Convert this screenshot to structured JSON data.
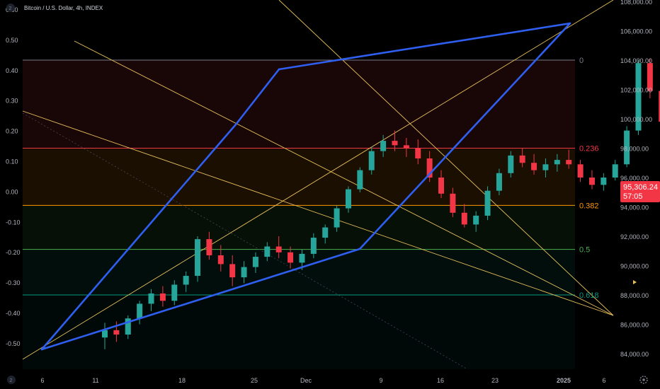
{
  "header": {
    "symbol_info": "Bitcoin / U.S. Dollar, 4h, INDEX"
  },
  "corner_badges": {
    "top_left": "2",
    "bottom_left": "2"
  },
  "price_tag": {
    "price": "95,306.24",
    "countdown": "57:05",
    "color": "#f23645"
  },
  "colors": {
    "background": "#000000",
    "up_candle": "#26a69a",
    "down_candle": "#f23645",
    "channel": "#2f5ff0",
    "fan_lines": "#e8c15a",
    "axis_text": "#b2b5be"
  },
  "chart_data": {
    "type": "candlestick",
    "title": "Bitcoin / U.S. Dollar, 4h, INDEX",
    "left_axis": {
      "ticks": [
        "0.60",
        "0.50",
        "0.40",
        "0.30",
        "0.20",
        "0.10",
        "0.00",
        "-0.10",
        "-0.20",
        "-0.30",
        "-0.40",
        "-0.50"
      ],
      "range": [
        -0.6,
        0.6
      ]
    },
    "right_axis": {
      "ticks": [
        "106,000.00",
        "104,000.00",
        "102,000.00",
        "100,000.00",
        "98,000.00",
        "96,000.00",
        "94,000.00",
        "92,000.00",
        "90,000.00",
        "88,000.00",
        "86,000.00",
        "84,000.00"
      ],
      "range": [
        82500,
        108000
      ],
      "top_tick": "108,000.00"
    },
    "x_axis": {
      "ticks": [
        "6",
        "11",
        "18",
        "25",
        "Dec",
        "2",
        "9",
        "16",
        "23",
        "2025",
        "6"
      ],
      "range": [
        "2024-11-06",
        "2025-01-06"
      ]
    },
    "fib_levels": [
      {
        "label": "0",
        "price": 104000,
        "color": "#787b86"
      },
      {
        "label": "0.236",
        "price": 98000,
        "color": "#f23645"
      },
      {
        "label": "0.382",
        "price": 94100,
        "color": "#ff9800"
      },
      {
        "label": "0.5",
        "price": 91100,
        "color": "#4caf50"
      },
      {
        "label": "0.618",
        "price": 88000,
        "color": "#089981"
      }
    ],
    "candles": [
      [
        85100,
        86100,
        84300,
        85600
      ],
      [
        85600,
        86200,
        84800,
        85300
      ],
      [
        85300,
        86600,
        85000,
        86400
      ],
      [
        86400,
        87600,
        86000,
        87400
      ],
      [
        87400,
        88400,
        86900,
        88100
      ],
      [
        88100,
        88600,
        87200,
        87600
      ],
      [
        87600,
        89000,
        87300,
        88700
      ],
      [
        88700,
        89600,
        88200,
        89300
      ],
      [
        89300,
        92000,
        88900,
        91800
      ],
      [
        91800,
        92300,
        90400,
        90700
      ],
      [
        90700,
        91400,
        89600,
        90100
      ],
      [
        90100,
        90700,
        88600,
        89200
      ],
      [
        89200,
        90300,
        88800,
        89900
      ],
      [
        89900,
        90900,
        89500,
        90600
      ],
      [
        90600,
        91600,
        90300,
        91300
      ],
      [
        91300,
        92000,
        90500,
        90900
      ],
      [
        90900,
        91300,
        89800,
        90200
      ],
      [
        90200,
        91100,
        89700,
        90800
      ],
      [
        90800,
        92200,
        90500,
        91900
      ],
      [
        91900,
        92800,
        91500,
        92600
      ],
      [
        92600,
        94100,
        92300,
        93900
      ],
      [
        93900,
        95400,
        93600,
        95200
      ],
      [
        95200,
        96700,
        95000,
        96500
      ],
      [
        96500,
        98100,
        96200,
        97800
      ],
      [
        97800,
        98900,
        97400,
        98500
      ],
      [
        98500,
        99200,
        97800,
        98200
      ],
      [
        98200,
        98700,
        97400,
        98000
      ],
      [
        98000,
        98600,
        96900,
        97300
      ],
      [
        97300,
        97800,
        95700,
        96000
      ],
      [
        96000,
        96500,
        94600,
        94900
      ],
      [
        94900,
        95300,
        93300,
        93600
      ],
      [
        93600,
        94200,
        92600,
        92800
      ],
      [
        92800,
        93700,
        92300,
        93400
      ],
      [
        93400,
        95400,
        93100,
        95100
      ],
      [
        95100,
        96600,
        94800,
        96300
      ],
      [
        96300,
        97800,
        96000,
        97500
      ],
      [
        97500,
        98000,
        96700,
        97000
      ],
      [
        97000,
        97600,
        96200,
        96500
      ],
      [
        96500,
        97300,
        96000,
        96900
      ],
      [
        96900,
        97600,
        96400,
        97200
      ],
      [
        97200,
        97900,
        96600,
        96900
      ],
      [
        96900,
        97200,
        95700,
        96000
      ],
      [
        96000,
        96500,
        95200,
        95500
      ],
      [
        95500,
        96300,
        95100,
        96000
      ],
      [
        96000,
        97200,
        95800,
        96900
      ],
      [
        96900,
        99500,
        96700,
        99200
      ],
      [
        99200,
        104000,
        98900,
        103800
      ],
      [
        103800,
        104100,
        101400,
        101900
      ],
      [
        101900,
        102300,
        99300,
        99800
      ],
      [
        99800,
        100300,
        97300,
        97800
      ],
      [
        97800,
        99700,
        91100,
        99300
      ],
      [
        99300,
        100200,
        98200,
        99100
      ],
      [
        99100,
        101700,
        98900,
        101300
      ],
      [
        101300,
        101900,
        99700,
        100300
      ],
      [
        100300,
        100900,
        99000,
        99500
      ],
      [
        99500,
        100800,
        99200,
        100500
      ],
      [
        100500,
        100800,
        98600,
        98900
      ],
      [
        98900,
        99400,
        97400,
        97700
      ],
      [
        97700,
        98400,
        96700,
        97100
      ],
      [
        97100,
        97600,
        95800,
        96100
      ],
      [
        96100,
        97800,
        95800,
        97600
      ],
      [
        97600,
        97900,
        95500,
        95800
      ],
      [
        95800,
        96400,
        94900,
        95306
      ]
    ]
  }
}
